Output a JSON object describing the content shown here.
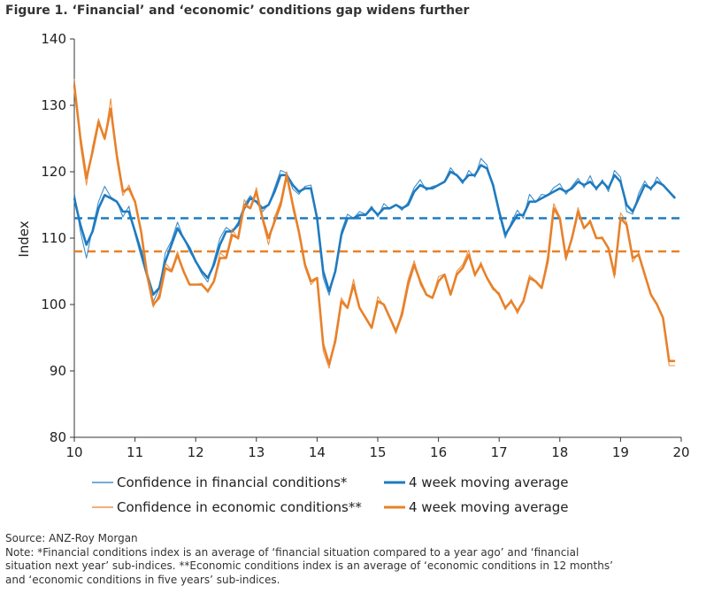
{
  "figure": {
    "title": "Figure 1. ‘Financial’ and ‘economic’ conditions gap widens further"
  },
  "chart_data": {
    "type": "line",
    "title": "Figure 1. ‘Financial’ and ‘economic’ conditions gap widens further",
    "xlabel": "",
    "ylabel": "Index",
    "xlim": [
      10,
      20
    ],
    "ylim": [
      80,
      140
    ],
    "x_ticks": [
      "10",
      "11",
      "12",
      "13",
      "14",
      "15",
      "16",
      "17",
      "18",
      "19",
      "20"
    ],
    "y_ticks": [
      "80",
      "90",
      "100",
      "110",
      "120",
      "130",
      "140"
    ],
    "grid": false,
    "legend_position": "bottom",
    "colors": {
      "financial": "#1f7bc0",
      "economic": "#e8812a"
    },
    "reference_lines": [
      {
        "series": "financial",
        "value": 113,
        "style": "dashed"
      },
      {
        "series": "economic",
        "value": 108,
        "style": "dashed"
      }
    ],
    "series": [
      {
        "name": "Confidence in financial conditions*",
        "key": "financial",
        "style": "thin",
        "x": [
          10.0,
          10.1,
          10.2,
          10.3,
          10.4,
          10.5,
          10.6,
          10.7,
          10.8,
          10.9,
          11.0,
          11.1,
          11.2,
          11.3,
          11.4,
          11.5,
          11.6,
          11.7,
          11.8,
          11.9,
          12.0,
          12.1,
          12.2,
          12.3,
          12.4,
          12.5,
          12.6,
          12.7,
          12.8,
          12.9,
          13.0,
          13.1,
          13.2,
          13.3,
          13.4,
          13.5,
          13.6,
          13.7,
          13.8,
          13.9,
          14.0,
          14.1,
          14.2,
          14.3,
          14.4,
          14.5,
          14.6,
          14.7,
          14.8,
          14.9,
          15.0,
          15.1,
          15.2,
          15.3,
          15.4,
          15.5,
          15.6,
          15.7,
          15.8,
          15.9,
          16.0,
          16.1,
          16.2,
          16.3,
          16.4,
          16.5,
          16.6,
          16.7,
          16.8,
          16.9,
          17.0,
          17.1,
          17.2,
          17.3,
          17.4,
          17.5,
          17.6,
          17.7,
          17.8,
          17.9,
          18.0,
          18.1,
          18.2,
          18.3,
          18.4,
          18.5,
          18.6,
          18.7,
          18.8,
          18.9,
          19.0,
          19.1,
          19.2,
          19.3,
          19.4,
          19.5,
          19.6,
          19.7,
          19.8,
          19.9
        ],
        "values": [
          116.8,
          111.0,
          107.0,
          111.5,
          115.5,
          117.8,
          116.2,
          115.6,
          113.2,
          114.8,
          110.6,
          107.2,
          104.0,
          100.4,
          102.4,
          107.8,
          109.6,
          112.4,
          110.0,
          108.0,
          106.4,
          104.6,
          103.4,
          106.6,
          110.0,
          111.6,
          111.0,
          112.4,
          115.0,
          116.4,
          115.4,
          114.0,
          115.0,
          117.6,
          120.2,
          119.8,
          117.4,
          116.6,
          117.8,
          118.0,
          112.6,
          104.0,
          101.4,
          105.2,
          111.0,
          113.6,
          113.0,
          114.0,
          113.6,
          114.8,
          113.2,
          115.2,
          114.4,
          115.0,
          114.2,
          115.4,
          117.6,
          118.8,
          117.2,
          117.8,
          118.0,
          118.6,
          120.6,
          119.4,
          118.2,
          120.2,
          119.2,
          122.0,
          121.0,
          117.6,
          113.6,
          110.0,
          112.4,
          114.2,
          113.0,
          116.6,
          115.4,
          116.6,
          116.4,
          117.6,
          118.2,
          116.6,
          117.8,
          119.0,
          117.6,
          119.4,
          117.2,
          118.8,
          117.0,
          120.2,
          119.2,
          114.0,
          113.6,
          116.8,
          118.6,
          117.2,
          119.2,
          118.0,
          117.0,
          116.2
        ]
      },
      {
        "name": "4 week moving average",
        "key": "financial",
        "style": "thick",
        "x": [
          10.0,
          10.1,
          10.2,
          10.3,
          10.4,
          10.5,
          10.6,
          10.7,
          10.8,
          10.9,
          11.0,
          11.1,
          11.2,
          11.3,
          11.4,
          11.5,
          11.6,
          11.7,
          11.8,
          11.9,
          12.0,
          12.1,
          12.2,
          12.3,
          12.4,
          12.5,
          12.6,
          12.7,
          12.8,
          12.9,
          13.0,
          13.1,
          13.2,
          13.3,
          13.4,
          13.5,
          13.6,
          13.7,
          13.8,
          13.9,
          14.0,
          14.1,
          14.2,
          14.3,
          14.4,
          14.5,
          14.6,
          14.7,
          14.8,
          14.9,
          15.0,
          15.1,
          15.2,
          15.3,
          15.4,
          15.5,
          15.6,
          15.7,
          15.8,
          15.9,
          16.0,
          16.1,
          16.2,
          16.3,
          16.4,
          16.5,
          16.6,
          16.7,
          16.8,
          16.9,
          17.0,
          17.1,
          17.2,
          17.3,
          17.4,
          17.5,
          17.6,
          17.7,
          17.8,
          17.9,
          18.0,
          18.1,
          18.2,
          18.3,
          18.4,
          18.5,
          18.6,
          18.7,
          18.8,
          18.9,
          19.0,
          19.1,
          19.2,
          19.3,
          19.4,
          19.5,
          19.6,
          19.7,
          19.8,
          19.9
        ],
        "values": [
          116.0,
          112.0,
          109.0,
          111.0,
          114.5,
          116.5,
          116.0,
          115.5,
          114.0,
          114.0,
          111.0,
          108.0,
          104.5,
          101.5,
          102.5,
          106.5,
          109.0,
          111.5,
          110.0,
          108.5,
          106.5,
          105.0,
          104.0,
          106.0,
          109.0,
          111.0,
          111.0,
          112.0,
          114.5,
          116.0,
          115.5,
          114.5,
          115.0,
          117.0,
          119.5,
          119.5,
          118.0,
          117.0,
          117.5,
          117.5,
          113.0,
          105.0,
          102.0,
          105.0,
          110.5,
          113.0,
          113.0,
          113.5,
          113.5,
          114.5,
          113.5,
          114.5,
          114.5,
          115.0,
          114.5,
          115.0,
          117.0,
          118.0,
          117.5,
          117.5,
          118.0,
          118.5,
          120.0,
          119.5,
          118.5,
          119.5,
          119.5,
          121.0,
          120.5,
          118.0,
          114.0,
          110.5,
          112.0,
          113.5,
          113.5,
          115.5,
          115.5,
          116.0,
          116.5,
          117.0,
          117.5,
          117.0,
          117.5,
          118.5,
          118.0,
          118.5,
          117.5,
          118.5,
          117.5,
          119.5,
          118.5,
          115.0,
          114.0,
          116.0,
          118.0,
          117.5,
          118.5,
          118.0,
          117.0,
          116.0
        ]
      },
      {
        "name": "Confidence in economic conditions**",
        "key": "economic",
        "style": "thin",
        "x": [
          10.0,
          10.1,
          10.2,
          10.3,
          10.4,
          10.5,
          10.6,
          10.7,
          10.8,
          10.9,
          11.0,
          11.1,
          11.2,
          11.3,
          11.4,
          11.5,
          11.6,
          11.7,
          11.8,
          11.9,
          12.0,
          12.1,
          12.2,
          12.3,
          12.4,
          12.5,
          12.6,
          12.7,
          12.8,
          12.9,
          13.0,
          13.1,
          13.2,
          13.3,
          13.4,
          13.5,
          13.6,
          13.7,
          13.8,
          13.9,
          14.0,
          14.1,
          14.2,
          14.3,
          14.4,
          14.5,
          14.6,
          14.7,
          14.8,
          14.9,
          15.0,
          15.1,
          15.2,
          15.3,
          15.4,
          15.5,
          15.6,
          15.7,
          15.8,
          15.9,
          16.0,
          16.1,
          16.2,
          16.3,
          16.4,
          16.5,
          16.6,
          16.7,
          16.8,
          16.9,
          17.0,
          17.1,
          17.2,
          17.3,
          17.4,
          17.5,
          17.6,
          17.7,
          17.8,
          17.9,
          18.0,
          18.1,
          18.2,
          18.3,
          18.4,
          18.5,
          18.6,
          18.7,
          18.8,
          18.9,
          19.0,
          19.1,
          19.2,
          19.3,
          19.4,
          19.5,
          19.6,
          19.7,
          19.8,
          19.9
        ],
        "values": [
          134.0,
          124.0,
          118.0,
          123.8,
          128.0,
          124.8,
          131.0,
          121.8,
          116.4,
          118.0,
          115.6,
          110.6,
          104.0,
          99.6,
          101.6,
          106.2,
          105.2,
          108.0,
          104.8,
          103.0,
          103.0,
          103.2,
          101.8,
          103.6,
          107.8,
          107.0,
          111.4,
          109.8,
          115.8,
          114.4,
          117.6,
          112.6,
          109.0,
          113.2,
          115.6,
          120.0,
          114.4,
          110.6,
          105.6,
          103.0,
          104.0,
          93.0,
          90.4,
          95.2,
          101.0,
          99.6,
          103.8,
          99.4,
          97.8,
          96.4,
          101.2,
          99.8,
          97.8,
          95.6,
          99.2,
          103.8,
          106.6,
          103.0,
          101.4,
          101.0,
          104.2,
          104.6,
          101.4,
          105.0,
          106.0,
          108.2,
          104.2,
          106.4,
          103.8,
          102.2,
          101.8,
          99.2,
          100.8,
          98.6,
          100.6,
          104.4,
          103.6,
          102.4,
          107.4,
          115.2,
          113.2,
          106.6,
          110.4,
          114.6,
          111.4,
          112.8,
          110.0,
          110.2,
          108.4,
          104.0,
          113.8,
          112.4,
          106.4,
          107.8,
          104.4,
          101.4,
          100.2,
          97.8,
          90.8,
          90.8
        ]
      },
      {
        "name": "4 week moving average",
        "key": "economic",
        "style": "thick",
        "x": [
          10.0,
          10.1,
          10.2,
          10.3,
          10.4,
          10.5,
          10.6,
          10.7,
          10.8,
          10.9,
          11.0,
          11.1,
          11.2,
          11.3,
          11.4,
          11.5,
          11.6,
          11.7,
          11.8,
          11.9,
          12.0,
          12.1,
          12.2,
          12.3,
          12.4,
          12.5,
          12.6,
          12.7,
          12.8,
          12.9,
          13.0,
          13.1,
          13.2,
          13.3,
          13.4,
          13.5,
          13.6,
          13.7,
          13.8,
          13.9,
          14.0,
          14.1,
          14.2,
          14.3,
          14.4,
          14.5,
          14.6,
          14.7,
          14.8,
          14.9,
          15.0,
          15.1,
          15.2,
          15.3,
          15.4,
          15.5,
          15.6,
          15.7,
          15.8,
          15.9,
          16.0,
          16.1,
          16.2,
          16.3,
          16.4,
          16.5,
          16.6,
          16.7,
          16.8,
          16.9,
          17.0,
          17.1,
          17.2,
          17.3,
          17.4,
          17.5,
          17.6,
          17.7,
          17.8,
          17.9,
          18.0,
          18.1,
          18.2,
          18.3,
          18.4,
          18.5,
          18.6,
          18.7,
          18.8,
          18.9,
          19.0,
          19.1,
          19.2,
          19.3,
          19.4,
          19.5,
          19.6,
          19.7,
          19.8,
          19.9
        ],
        "values": [
          133.0,
          125.0,
          119.0,
          123.0,
          127.5,
          125.0,
          129.5,
          122.5,
          117.0,
          117.5,
          115.5,
          111.0,
          104.5,
          100.0,
          101.0,
          105.5,
          105.0,
          107.5,
          105.0,
          103.0,
          103.0,
          103.0,
          102.0,
          103.5,
          107.0,
          107.0,
          110.5,
          110.0,
          115.0,
          114.5,
          117.0,
          113.0,
          110.0,
          112.5,
          115.0,
          119.5,
          115.0,
          111.0,
          106.0,
          103.5,
          104.0,
          94.0,
          91.0,
          94.5,
          100.5,
          99.5,
          103.0,
          99.5,
          98.0,
          96.5,
          100.5,
          100.0,
          98.0,
          96.0,
          98.5,
          103.0,
          106.0,
          103.5,
          101.5,
          101.0,
          103.5,
          104.5,
          101.5,
          104.5,
          105.5,
          107.5,
          104.5,
          106.0,
          104.0,
          102.5,
          101.5,
          99.5,
          100.5,
          99.0,
          100.5,
          104.0,
          103.5,
          102.5,
          106.5,
          114.5,
          113.0,
          107.0,
          110.0,
          114.0,
          111.5,
          112.5,
          110.0,
          110.0,
          108.5,
          104.5,
          113.0,
          112.0,
          107.0,
          107.5,
          104.5,
          101.5,
          100.0,
          98.0,
          91.5,
          91.5
        ]
      }
    ]
  },
  "footer": {
    "source": "Source: ANZ-Roy Morgan",
    "note_line1": "Note: *Financial conditions index is an average of ‘financial situation compared to a year ago’ and ‘financial",
    "note_line2": "situation next year’ sub-indices. **Economic conditions index is an average of ‘economic conditions in 12 months’",
    "note_line3": "and ‘economic conditions in five years’ sub-indices."
  }
}
